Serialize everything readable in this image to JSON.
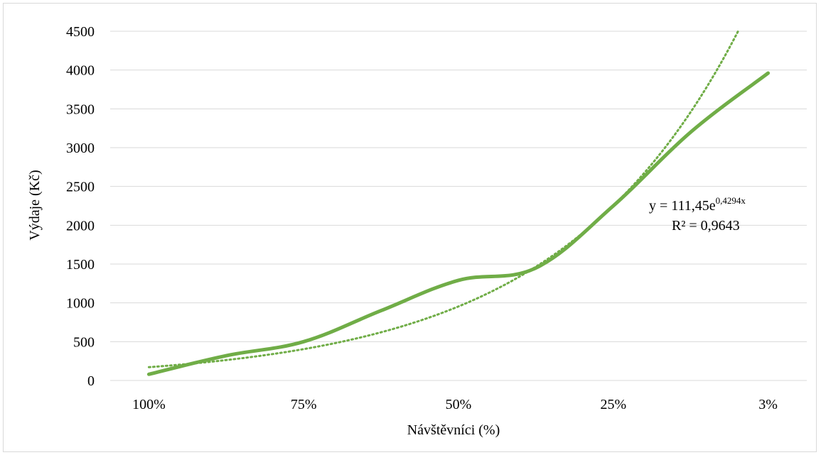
{
  "chart_data": {
    "type": "line",
    "title": "",
    "xlabel": "Návštěvníci (%)",
    "ylabel": "Výdaje  (Kč)",
    "categories": [
      "100%",
      "",
      "75%",
      "",
      "50%",
      "",
      "25%",
      "",
      "3%"
    ],
    "x_tick_labels": [
      "100%",
      "75%",
      "50%",
      "25%",
      "3%"
    ],
    "ylim": [
      0,
      4500
    ],
    "y_ticks": [
      0,
      500,
      1000,
      1500,
      2000,
      2500,
      3000,
      3500,
      4000,
      4500
    ],
    "grid": true,
    "legend": "none",
    "series": [
      {
        "values": [
          80,
          320,
          500,
          900,
          1290,
          1450,
          2250,
          3200,
          3960
        ],
        "color": "#70ad47",
        "style": "solid"
      }
    ],
    "trendline": {
      "type": "exponential",
      "a": 111.45,
      "b": 0.4294,
      "equation_text": "y = 111,45e",
      "equation_exponent": "0,4294x",
      "r2_text": "R² = 0,9643",
      "color": "#70ad47",
      "style": "dotted"
    }
  }
}
